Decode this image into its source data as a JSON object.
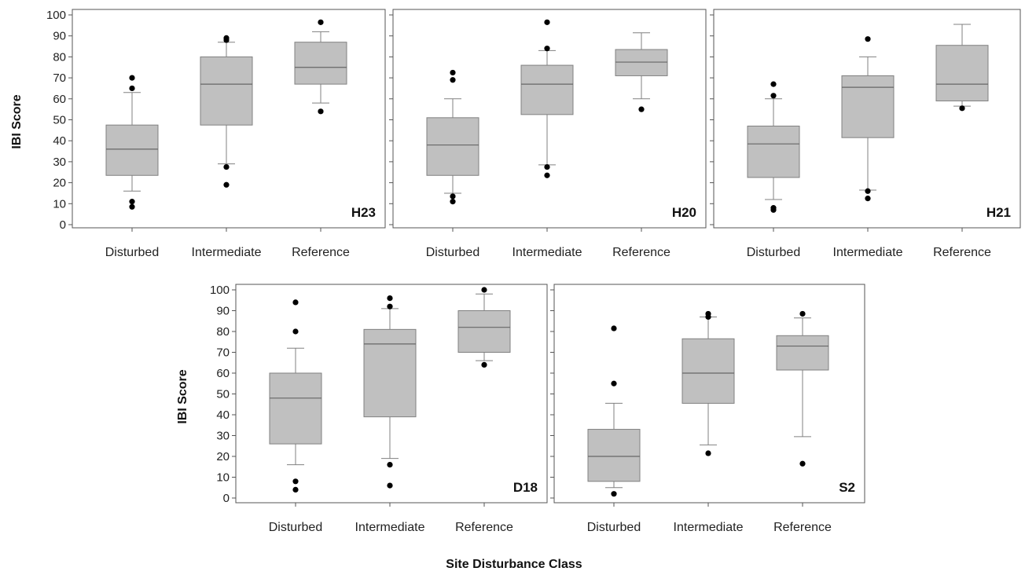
{
  "chart_data": {
    "type": "box",
    "shared": {
      "ylabel": "IBI Score",
      "xlabel": "Site Disturbance Class",
      "categories": [
        "Disturbed",
        "Intermediate",
        "Reference"
      ],
      "ylim": [
        0,
        100
      ],
      "yticks": [
        0,
        10,
        20,
        30,
        40,
        50,
        60,
        70,
        80,
        90,
        100
      ],
      "grid": false,
      "box_color": "#c0c0c0",
      "edge_color": "#808080",
      "outlier_color": "#000000"
    },
    "panels": [
      {
        "label": "H23",
        "boxes": [
          {
            "category": "Disturbed",
            "whisker_low": 16,
            "q1": 23.5,
            "median": 36,
            "q3": 47.5,
            "whisker_high": 63,
            "outliers": [
              70,
              65,
              11,
              8.5
            ]
          },
          {
            "category": "Intermediate",
            "whisker_low": 29,
            "q1": 47.5,
            "median": 67,
            "q3": 80,
            "whisker_high": 87,
            "outliers": [
              89,
              88,
              27.5,
              19
            ]
          },
          {
            "category": "Reference",
            "whisker_low": 58,
            "q1": 67,
            "median": 75,
            "q3": 87,
            "whisker_high": 92,
            "outliers": [
              96.5,
              54
            ]
          }
        ]
      },
      {
        "label": "H20",
        "boxes": [
          {
            "category": "Disturbed",
            "whisker_low": 15,
            "q1": 23.5,
            "median": 38,
            "q3": 51,
            "whisker_high": 60,
            "outliers": [
              72.5,
              69,
              13.5,
              11
            ]
          },
          {
            "category": "Intermediate",
            "whisker_low": 28.5,
            "q1": 52.5,
            "median": 67,
            "q3": 76,
            "whisker_high": 83,
            "outliers": [
              96.5,
              84,
              27.5,
              23.5
            ]
          },
          {
            "category": "Reference",
            "whisker_low": 60,
            "q1": 71,
            "median": 77.5,
            "q3": 83.5,
            "whisker_high": 91.5,
            "outliers": [
              55
            ]
          }
        ]
      },
      {
        "label": "H21",
        "boxes": [
          {
            "category": "Disturbed",
            "whisker_low": 12,
            "q1": 22.5,
            "median": 38.5,
            "q3": 47,
            "whisker_high": 60,
            "outliers": [
              67,
              61.5,
              8,
              7
            ]
          },
          {
            "category": "Intermediate",
            "whisker_low": 16.5,
            "q1": 41.5,
            "median": 65.5,
            "q3": 71,
            "whisker_high": 80,
            "outliers": [
              88.5,
              16,
              12.5
            ]
          },
          {
            "category": "Reference",
            "whisker_low": 56.5,
            "q1": 59,
            "median": 67,
            "q3": 85.5,
            "whisker_high": 95.5,
            "outliers": [
              55.5
            ]
          }
        ]
      },
      {
        "label": "D18",
        "boxes": [
          {
            "category": "Disturbed",
            "whisker_low": 16,
            "q1": 26,
            "median": 48,
            "q3": 60,
            "whisker_high": 72,
            "outliers": [
              94,
              80,
              8,
              4
            ]
          },
          {
            "category": "Intermediate",
            "whisker_low": 19,
            "q1": 39,
            "median": 74,
            "q3": 81,
            "whisker_high": 91,
            "outliers": [
              96,
              92,
              16,
              6
            ]
          },
          {
            "category": "Reference",
            "whisker_low": 66,
            "q1": 70,
            "median": 82,
            "q3": 90,
            "whisker_high": 98,
            "outliers": [
              100,
              64
            ]
          }
        ]
      },
      {
        "label": "S2",
        "boxes": [
          {
            "category": "Disturbed",
            "whisker_low": 5,
            "q1": 8,
            "median": 20,
            "q3": 33,
            "whisker_high": 45.5,
            "outliers": [
              81.5,
              55,
              2
            ]
          },
          {
            "category": "Intermediate",
            "whisker_low": 25.5,
            "q1": 45.5,
            "median": 60,
            "q3": 76.5,
            "whisker_high": 87,
            "outliers": [
              88.5,
              87,
              21.5
            ]
          },
          {
            "category": "Reference",
            "whisker_low": 29.5,
            "q1": 61.5,
            "median": 73,
            "q3": 78,
            "whisker_high": 86.5,
            "outliers": [
              88.5,
              16.5
            ]
          }
        ]
      }
    ]
  }
}
